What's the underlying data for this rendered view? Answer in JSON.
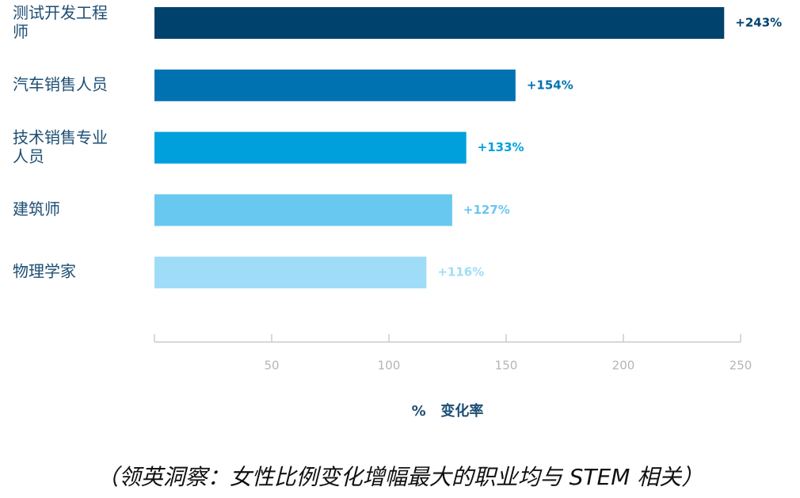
{
  "chart_data": {
    "type": "bar",
    "orientation": "horizontal",
    "categories": [
      "测试开发工程师",
      "汽车销售人员",
      "技术销售专业人员",
      "建筑师",
      "物理学家"
    ],
    "values": [
      243,
      154,
      133,
      127,
      116
    ],
    "value_labels": [
      "+243%",
      "+154%",
      "+133%",
      "+127%",
      "+116%"
    ],
    "colors": [
      "#00426e",
      "#0072b1",
      "#00a0dc",
      "#68c8f0",
      "#9fdcf7"
    ],
    "xlim": [
      0,
      250
    ],
    "xticks": [
      50,
      100,
      150,
      200,
      250
    ],
    "x_label": "%   变化率",
    "caption": "（领英洞察：女性比例变化增幅最大的职业均与 STEM 相关）"
  }
}
